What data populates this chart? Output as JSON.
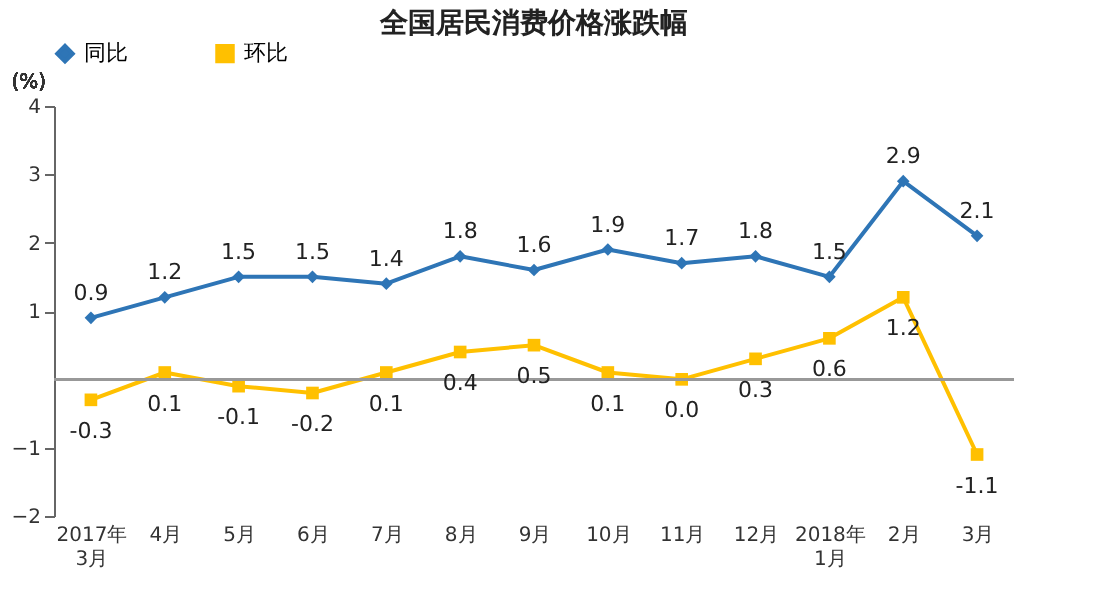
{
  "chart_data": {
    "type": "line",
    "title": "全国居民消费价格涨跌幅",
    "ylabel": "(%)",
    "categories": [
      "2017年\n3月",
      "4月",
      "5月",
      "6月",
      "7月",
      "8月",
      "9月",
      "10月",
      "11月",
      "12月",
      "2018年\n1月",
      "2月",
      "3月"
    ],
    "series": [
      {
        "name": "同比",
        "color": "#2e75b6",
        "marker": "diamond",
        "values": [
          0.9,
          1.2,
          1.5,
          1.5,
          1.4,
          1.8,
          1.6,
          1.9,
          1.7,
          1.8,
          1.5,
          2.9,
          2.1
        ],
        "value_labels": [
          "0.9",
          "1.2",
          "1.5",
          "1.5",
          "1.4",
          "1.8",
          "1.6",
          "1.9",
          "1.7",
          "1.8",
          "1.5",
          "2.9",
          "2.1"
        ]
      },
      {
        "name": "环比",
        "color": "#ffc000",
        "marker": "square",
        "values": [
          -0.3,
          0.1,
          -0.1,
          -0.2,
          0.1,
          0.4,
          0.5,
          0.1,
          0.0,
          0.3,
          0.6,
          1.2,
          -1.1
        ],
        "value_labels": [
          "-0.3",
          "0.1",
          "-0.1",
          "-0.2",
          "0.1",
          "0.4",
          "0.5",
          "0.1",
          "0.0",
          "0.3",
          "0.6",
          "1.2",
          "-1.1"
        ]
      }
    ],
    "ylim": [
      -2,
      4
    ],
    "yticks": [
      -2,
      -1,
      1,
      2,
      3,
      4
    ],
    "ref_lines": [
      {
        "axis": "y",
        "value": 0,
        "color": "#999999"
      }
    ],
    "legend": "top",
    "grid": false,
    "line_style": "solid"
  }
}
